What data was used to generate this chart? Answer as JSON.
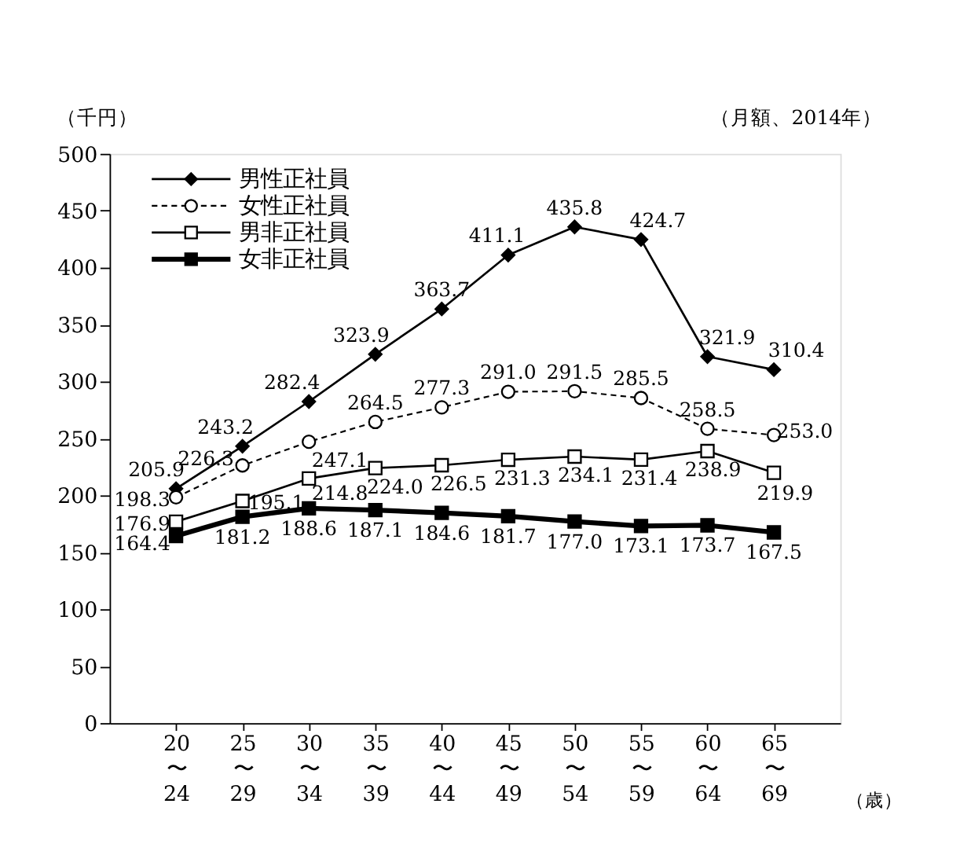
{
  "chart_data": {
    "type": "line",
    "ylabel": "（千円）",
    "xlabel": "（歳）",
    "annotations": [
      "（月額、2014年）"
    ],
    "categories": [
      "20〜24",
      "25〜29",
      "30〜34",
      "35〜39",
      "40〜44",
      "45〜49",
      "50〜54",
      "55〜59",
      "60〜64",
      "65〜69"
    ],
    "series": [
      {
        "name": "男性正社員",
        "color": "#000000",
        "marker": "diamond",
        "line_style": "solid",
        "values": [
          205.9,
          243.2,
          282.4,
          323.9,
          363.7,
          411.1,
          435.8,
          424.7,
          321.9,
          310.4
        ],
        "value_labels": [
          "205.9",
          "243.2",
          "282.4",
          "323.9",
          "363.7",
          "411.1",
          "435.8",
          "424.7",
          "321.9",
          "310.4"
        ]
      },
      {
        "name": "女性正社員",
        "color": "#000000",
        "marker": "circle",
        "line_style": "dashed",
        "values": [
          198.3,
          226.3,
          247.1,
          264.5,
          277.3,
          291.0,
          291.5,
          285.5,
          258.5,
          253.0
        ],
        "value_labels": [
          "198.3",
          "226.3",
          "247.1",
          "264.5",
          "277.3",
          "291.0",
          "291.5",
          "285.5",
          "258.5",
          "253.0"
        ]
      },
      {
        "name": "男非正社員",
        "color": "#000000",
        "marker": "square",
        "line_style": "solid",
        "values": [
          176.9,
          195.1,
          214.8,
          224.0,
          226.5,
          231.3,
          234.1,
          231.4,
          238.9,
          219.9
        ],
        "value_labels": [
          "176.9",
          "195.1",
          "214.8",
          "224.0",
          "226.5",
          "231.3",
          "234.1",
          "231.4",
          "238.9",
          "219.9"
        ]
      },
      {
        "name": "女非正社員",
        "color": "#000000",
        "marker": "square",
        "line_style": "solid",
        "values": [
          164.4,
          181.2,
          188.6,
          187.1,
          184.6,
          181.7,
          177.0,
          173.1,
          173.7,
          167.5
        ],
        "value_labels": [
          "164.4",
          "181.2",
          "188.6",
          "187.1",
          "184.6",
          "181.7",
          "177.0",
          "173.1",
          "173.7",
          "167.5"
        ]
      }
    ],
    "ylim": [
      0,
      500
    ],
    "yticks": [
      0,
      50,
      100,
      150,
      200,
      250,
      300,
      350,
      400,
      450,
      500
    ],
    "legend": "top left",
    "grid": false
  }
}
